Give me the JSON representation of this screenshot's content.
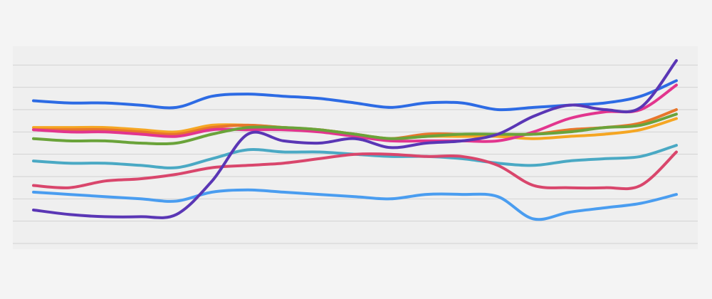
{
  "chart_data": {
    "type": "line",
    "title": "",
    "xlabel": "",
    "ylabel": "",
    "x": [
      1,
      2,
      3,
      4,
      5,
      6,
      7,
      8,
      9,
      10,
      11,
      12,
      13,
      14,
      15,
      16,
      17,
      18,
      19
    ],
    "ylim": [
      0,
      9
    ],
    "grid": true,
    "legend": "none",
    "series": [
      {
        "color": "#2d6be4",
        "values": [
          6.4,
          6.3,
          6.3,
          6.2,
          6.1,
          6.6,
          6.7,
          6.6,
          6.5,
          6.3,
          6.1,
          6.3,
          6.3,
          6.0,
          6.1,
          6.2,
          6.3,
          6.6,
          7.3
        ]
      },
      {
        "color": "#f5a623",
        "values": [
          5.2,
          5.2,
          5.2,
          5.1,
          5.0,
          5.3,
          5.3,
          5.2,
          5.1,
          4.9,
          4.7,
          4.8,
          4.8,
          4.8,
          4.7,
          4.8,
          4.9,
          5.1,
          5.6
        ]
      },
      {
        "color": "#e8762b",
        "values": [
          5.1,
          5.1,
          5.1,
          5.0,
          4.9,
          5.2,
          5.3,
          5.2,
          5.1,
          4.9,
          4.7,
          4.9,
          4.9,
          4.9,
          4.9,
          5.1,
          5.2,
          5.4,
          6.0
        ]
      },
      {
        "color": "#e2358e",
        "values": [
          5.1,
          5.0,
          5.0,
          4.9,
          4.8,
          5.1,
          5.1,
          5.1,
          5.0,
          4.8,
          4.6,
          4.6,
          4.6,
          4.6,
          5.0,
          5.6,
          5.9,
          6.0,
          7.1
        ]
      },
      {
        "color": "#6aa33a",
        "values": [
          4.7,
          4.6,
          4.6,
          4.5,
          4.5,
          4.9,
          5.2,
          5.2,
          5.1,
          4.9,
          4.7,
          4.8,
          4.9,
          4.9,
          4.9,
          5.0,
          5.2,
          5.3,
          5.8
        ]
      },
      {
        "color": "#4aa9c4",
        "values": [
          3.7,
          3.6,
          3.6,
          3.5,
          3.4,
          3.8,
          4.2,
          4.1,
          4.1,
          4.0,
          3.9,
          3.9,
          3.8,
          3.6,
          3.5,
          3.7,
          3.8,
          3.9,
          4.4
        ]
      },
      {
        "color": "#d9466c",
        "values": [
          2.6,
          2.5,
          2.8,
          2.9,
          3.1,
          3.4,
          3.5,
          3.6,
          3.8,
          4.0,
          4.0,
          3.9,
          3.9,
          3.5,
          2.6,
          2.5,
          2.5,
          2.6,
          4.1
        ]
      },
      {
        "color": "#4a9df0",
        "values": [
          2.3,
          2.2,
          2.1,
          2.0,
          1.9,
          2.3,
          2.4,
          2.3,
          2.2,
          2.1,
          2.0,
          2.2,
          2.2,
          2.1,
          1.1,
          1.4,
          1.6,
          1.8,
          2.2
        ]
      },
      {
        "color": "#5a36b5",
        "values": [
          1.5,
          1.3,
          1.2,
          1.2,
          1.3,
          2.8,
          4.9,
          4.6,
          4.5,
          4.7,
          4.3,
          4.5,
          4.6,
          4.9,
          5.7,
          6.2,
          6.0,
          6.1,
          8.2
        ]
      }
    ]
  }
}
